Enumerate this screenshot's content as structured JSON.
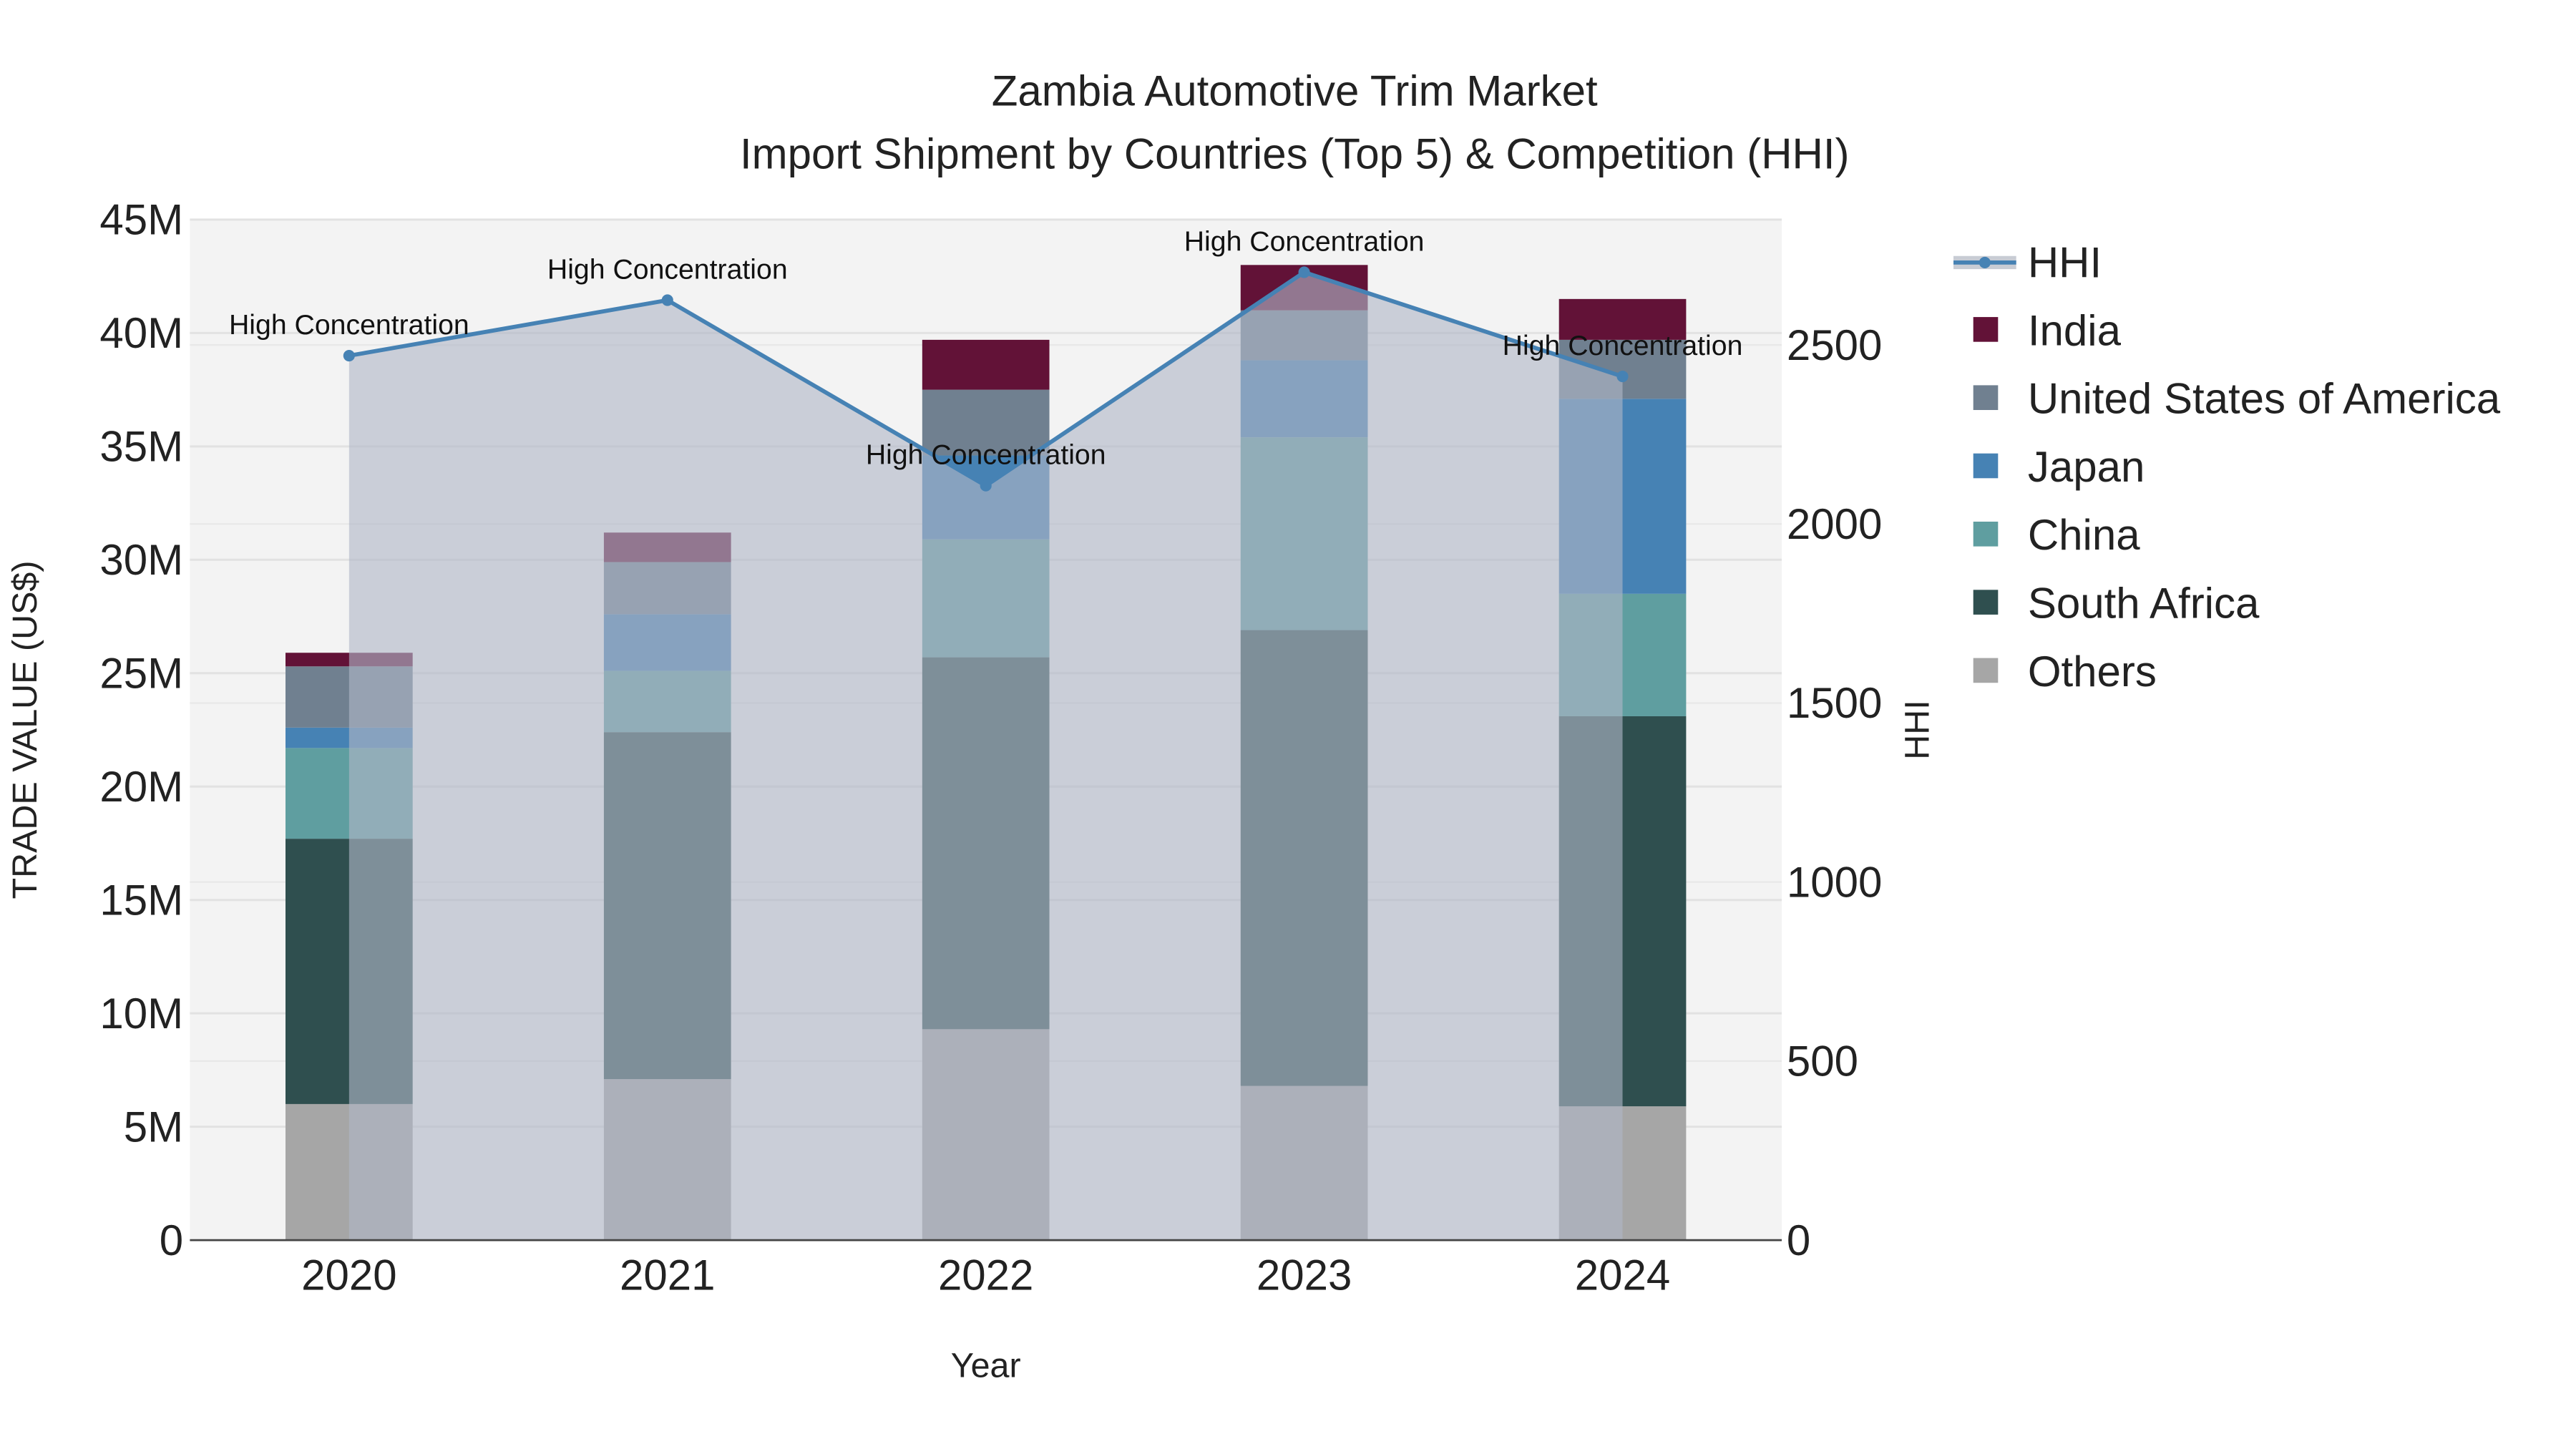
{
  "chart_data": {
    "type": "bar",
    "title_line1": "Zambia Automotive Trim Market",
    "title_line2": "Import Shipment by Countries (Top 5) & Competition (HHI)",
    "xlabel": "Year",
    "ylabel": "TRADE VALUE (US$)",
    "y2label": "HHI",
    "categories": [
      "2020",
      "2021",
      "2022",
      "2023",
      "2024"
    ],
    "ylim": [
      0,
      45000000
    ],
    "y2lim": [
      0,
      2850
    ],
    "yticks": [
      {
        "v": 0,
        "l": "0"
      },
      {
        "v": 5000000,
        "l": "5M"
      },
      {
        "v": 10000000,
        "l": "10M"
      },
      {
        "v": 15000000,
        "l": "15M"
      },
      {
        "v": 20000000,
        "l": "20M"
      },
      {
        "v": 25000000,
        "l": "25M"
      },
      {
        "v": 30000000,
        "l": "30M"
      },
      {
        "v": 35000000,
        "l": "35M"
      },
      {
        "v": 40000000,
        "l": "40M"
      },
      {
        "v": 45000000,
        "l": "45M"
      }
    ],
    "y2ticks": [
      {
        "v": 0,
        "l": "0"
      },
      {
        "v": 500,
        "l": "500"
      },
      {
        "v": 1000,
        "l": "1000"
      },
      {
        "v": 1500,
        "l": "1500"
      },
      {
        "v": 2000,
        "l": "2000"
      },
      {
        "v": 2500,
        "l": "2500"
      }
    ],
    "series": [
      {
        "name": "Others",
        "color": "#a6a6a6",
        "values": [
          6000000,
          7100000,
          9300000,
          6800000,
          5900000
        ]
      },
      {
        "name": "South Africa",
        "color": "#2f4f4f",
        "values": [
          11700000,
          15300000,
          16400000,
          20100000,
          17200000
        ]
      },
      {
        "name": "China",
        "color": "#5f9ea0",
        "values": [
          4000000,
          2700000,
          5200000,
          8500000,
          5400000
        ]
      },
      {
        "name": "Japan",
        "color": "#4682b4",
        "values": [
          900000,
          2500000,
          3700000,
          3400000,
          8600000
        ]
      },
      {
        "name": "United States of America",
        "color": "#708090",
        "values": [
          2700000,
          2300000,
          2900000,
          2200000,
          2600000
        ]
      },
      {
        "name": "India",
        "color": "#621237",
        "values": [
          600000,
          1300000,
          2200000,
          2000000,
          1800000
        ]
      }
    ],
    "hhi": {
      "name": "HHI",
      "color": "#4682b4",
      "values": [
        2470,
        2625,
        2107,
        2703,
        2412
      ],
      "annotations": [
        "High Concentration",
        "High Concentration",
        "High Concentration",
        "High Concentration",
        "High Concentration"
      ]
    },
    "legend_position": "right",
    "grid": true
  }
}
